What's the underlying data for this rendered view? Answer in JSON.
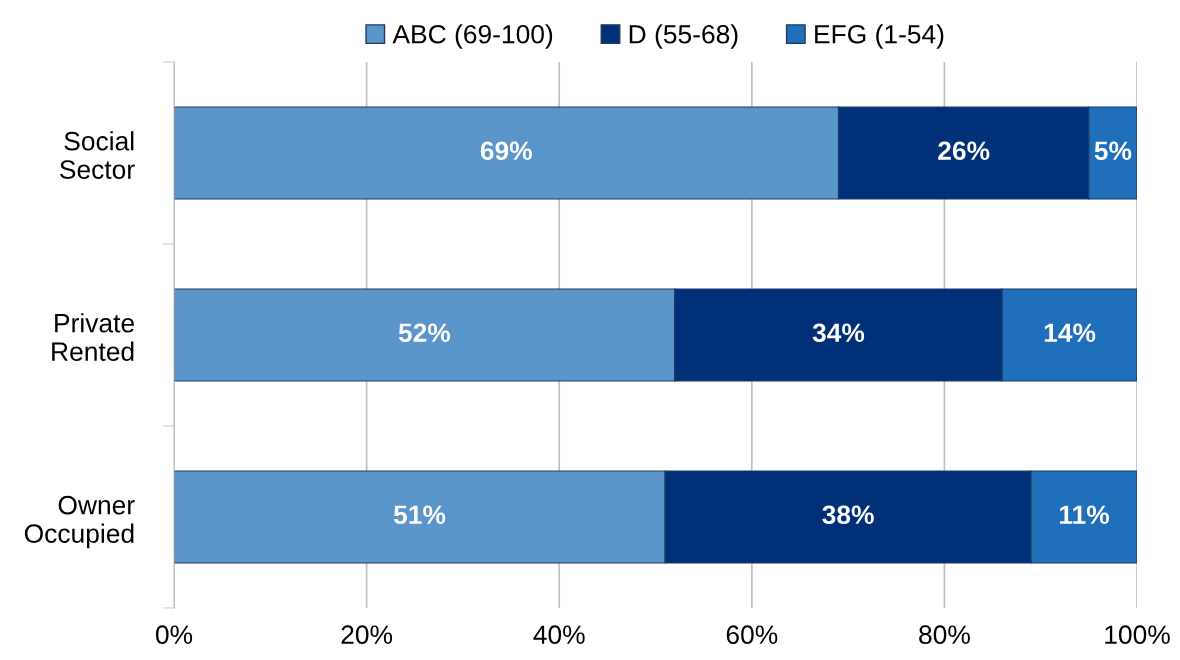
{
  "chart_data": {
    "type": "bar",
    "orientation": "horizontal",
    "stacked": true,
    "categories": [
      "Social\nSector",
      "Private\nRented",
      "Owner\nOccupied"
    ],
    "series": [
      {
        "name": "ABC (69-100)",
        "color": "#5b96cb",
        "values": [
          69,
          52,
          51
        ],
        "value_labels": [
          "69%",
          "52%",
          "51%"
        ]
      },
      {
        "name": "D (55-68)",
        "color": "#003078",
        "values": [
          26,
          34,
          38
        ],
        "value_labels": [
          "26%",
          "34%",
          "38%"
        ]
      },
      {
        "name": "EFG (1-54)",
        "color": "#1f6fba",
        "values": [
          5,
          14,
          11
        ],
        "value_labels": [
          "5%",
          "14%",
          "11%"
        ]
      }
    ],
    "xlim": [
      0,
      100
    ],
    "xticks": [
      {
        "value": 0,
        "label": "0%"
      },
      {
        "value": 20,
        "label": "20%"
      },
      {
        "value": 40,
        "label": "40%"
      },
      {
        "value": 60,
        "label": "60%"
      },
      {
        "value": 80,
        "label": "80%"
      },
      {
        "value": 100,
        "label": "100%"
      }
    ],
    "grid": "x",
    "legend": "top"
  }
}
